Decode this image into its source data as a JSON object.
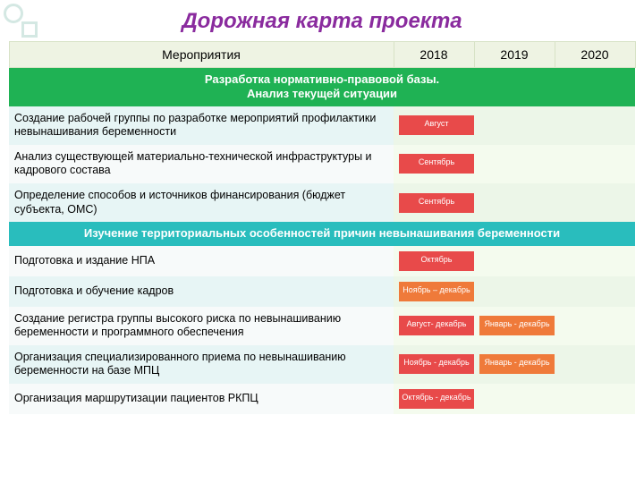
{
  "title": "Дорожная карта проекта",
  "title_color": "#8a2b9e",
  "colors": {
    "header_bg": "#eef3e3",
    "section1_bg": "#1fb254",
    "section2_bg": "#29bdbd",
    "row_alt_a": "#e7f5f5",
    "row_alt_b": "#f7fafa",
    "year_alt_a_2018": "#ecf6e8",
    "year_alt_a_2019": "#ecf6e8",
    "year_alt_a_2020": "#ecf6e8",
    "year_alt_b": "#f4fbee",
    "pill_red": "#e84a4a",
    "pill_orange": "#ef7a3a"
  },
  "columns": {
    "activity": "Мероприятия",
    "y2018": "2018",
    "y2019": "2019",
    "y2020": "2020"
  },
  "sections": [
    {
      "label": "Разработка нормативно-правовой базы.\nАнализ текущей ситуации",
      "bg_key": "section1_bg",
      "rows": [
        {
          "activity": "Создание рабочей группы по разработке мероприятий профилактики невынашивания беременности",
          "y2018": {
            "text": "Август",
            "color_key": "pill_red"
          }
        },
        {
          "activity": "Анализ существующей материально-технической инфраструктуры и кадрового состава",
          "y2018": {
            "text": "Сентябрь",
            "color_key": "pill_red"
          }
        },
        {
          "activity": "Определение способов и источников финансирования (бюджет субъекта, ОМС)",
          "y2018": {
            "text": "Сентябрь",
            "color_key": "pill_red"
          }
        }
      ]
    },
    {
      "label": "Изучение территориальных особенностей  причин невынашивания беременности",
      "bg_key": "section2_bg",
      "rows": [
        {
          "activity": "Подготовка и издание НПА",
          "y2018": {
            "text": "Октябрь",
            "color_key": "pill_red"
          }
        },
        {
          "activity": "Подготовка и обучение кадров",
          "y2018": {
            "text": "Ноябрь – декабрь",
            "color_key": "pill_orange"
          }
        },
        {
          "activity": "Создание регистра группы высокого риска по невынашиванию беременности и программного обеспечения",
          "y2018": {
            "text": "Август- декабрь",
            "color_key": "pill_red"
          },
          "y2019": {
            "text": "Январь - декабрь",
            "color_key": "pill_orange"
          }
        },
        {
          "activity": "Организация специализированного приема по невынашиванию беременности на базе МПЦ",
          "y2018": {
            "text": "Ноябрь - декабрь",
            "color_key": "pill_red"
          },
          "y2019": {
            "text": "Январь - декабрь",
            "color_key": "pill_orange"
          }
        },
        {
          "activity": "Организация маршрутизации пациентов РКПЦ",
          "y2018": {
            "text": "Октябрь - декабрь",
            "color_key": "pill_red"
          }
        }
      ]
    }
  ]
}
